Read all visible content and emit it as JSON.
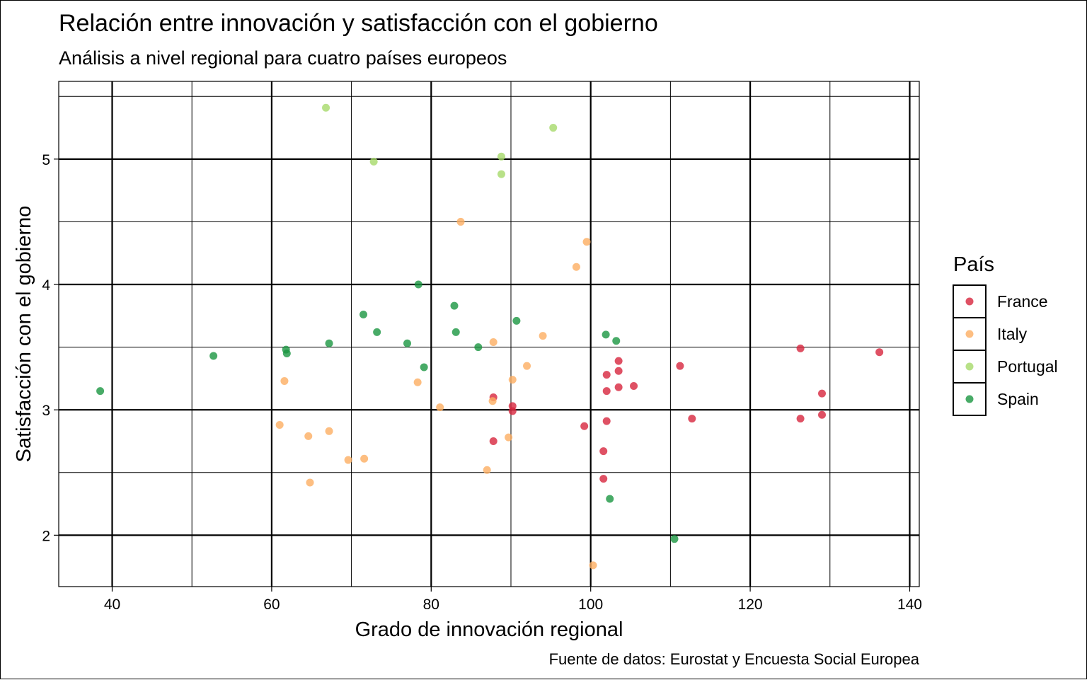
{
  "chart_data": {
    "type": "scatter",
    "title": "Relación entre innovación y satisfacción con el gobierno",
    "subtitle": "Análisis a nivel regional para cuatro países europeos",
    "xlabel": "Grado de innovación regional",
    "ylabel": "Satisfacción con el gobierno",
    "caption": "Fuente de datos: Eurostat y Encuesta Social Europea",
    "xlim": [
      33.3,
      141.2
    ],
    "ylim": [
      1.59,
      5.62
    ],
    "x_ticks": [
      40,
      60,
      80,
      100,
      120,
      140
    ],
    "x_tick_labels": [
      "40",
      "60",
      "80",
      "100",
      "120",
      "140"
    ],
    "y_ticks": [
      2,
      3,
      4,
      5
    ],
    "y_tick_labels": [
      "2",
      "3",
      "4",
      "5"
    ],
    "grid": true,
    "legend": {
      "title": "País",
      "position": "right"
    },
    "series": [
      {
        "name": "France",
        "color": "#d7263d",
        "points": [
          [
            87.8,
            3.1
          ],
          [
            90.2,
            3.03
          ],
          [
            90.2,
            2.99
          ],
          [
            87.8,
            2.75
          ],
          [
            99.2,
            2.87
          ],
          [
            101.6,
            2.67
          ],
          [
            101.6,
            2.45
          ],
          [
            102.0,
            3.28
          ],
          [
            102.0,
            3.15
          ],
          [
            102.0,
            2.91
          ],
          [
            103.5,
            3.39
          ],
          [
            103.5,
            3.31
          ],
          [
            103.5,
            3.18
          ],
          [
            105.4,
            3.19
          ],
          [
            111.2,
            3.35
          ],
          [
            112.7,
            2.93
          ],
          [
            126.3,
            3.49
          ],
          [
            126.3,
            2.93
          ],
          [
            129.0,
            3.13
          ],
          [
            129.0,
            2.96
          ],
          [
            136.2,
            3.46
          ]
        ]
      },
      {
        "name": "Italy",
        "color": "#fdae61",
        "points": [
          [
            61.0,
            2.88
          ],
          [
            61.6,
            3.23
          ],
          [
            64.6,
            2.79
          ],
          [
            64.8,
            2.42
          ],
          [
            67.2,
            2.83
          ],
          [
            69.6,
            2.6
          ],
          [
            71.6,
            2.61
          ],
          [
            78.3,
            3.22
          ],
          [
            81.1,
            3.02
          ],
          [
            83.7,
            4.5
          ],
          [
            87.0,
            2.52
          ],
          [
            87.7,
            3.07
          ],
          [
            87.8,
            3.54
          ],
          [
            89.7,
            2.78
          ],
          [
            90.2,
            3.24
          ],
          [
            92.0,
            3.35
          ],
          [
            94.0,
            3.59
          ],
          [
            98.2,
            4.14
          ],
          [
            99.5,
            4.34
          ],
          [
            100.3,
            1.76
          ]
        ]
      },
      {
        "name": "Portugal",
        "color": "#a6d96a",
        "points": [
          [
            66.8,
            5.41
          ],
          [
            72.8,
            4.98
          ],
          [
            88.8,
            5.02
          ],
          [
            88.8,
            4.88
          ],
          [
            95.3,
            5.25
          ]
        ]
      },
      {
        "name": "Spain",
        "color": "#1a9641",
        "points": [
          [
            38.5,
            3.15
          ],
          [
            52.7,
            3.43
          ],
          [
            61.8,
            3.48
          ],
          [
            61.9,
            3.45
          ],
          [
            67.2,
            3.53
          ],
          [
            71.5,
            3.76
          ],
          [
            73.2,
            3.62
          ],
          [
            77.0,
            3.53
          ],
          [
            78.4,
            4.0
          ],
          [
            79.1,
            3.34
          ],
          [
            82.9,
            3.83
          ],
          [
            83.1,
            3.62
          ],
          [
            85.9,
            3.5
          ],
          [
            90.7,
            3.71
          ],
          [
            101.9,
            3.6
          ],
          [
            103.2,
            3.55
          ],
          [
            102.4,
            2.29
          ],
          [
            110.5,
            1.97
          ]
        ]
      }
    ]
  }
}
